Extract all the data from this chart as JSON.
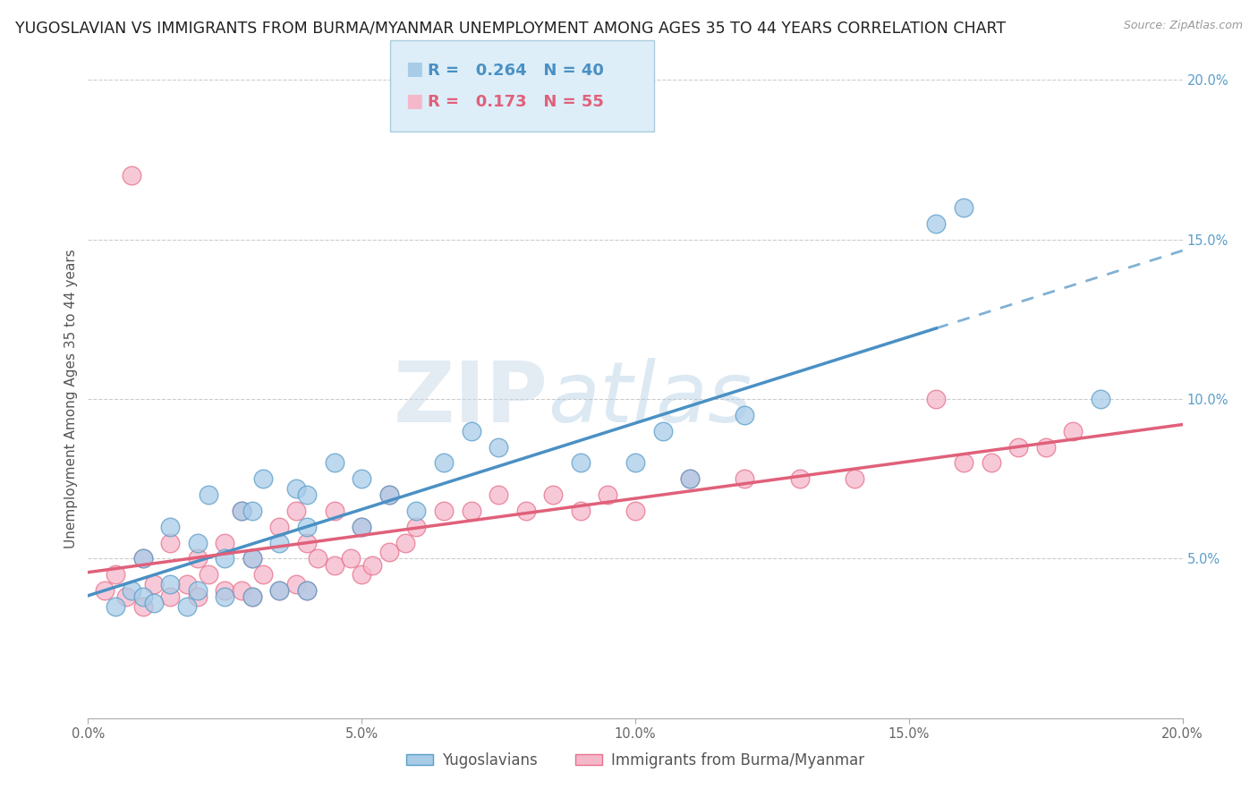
{
  "title": "YUGOSLAVIAN VS IMMIGRANTS FROM BURMA/MYANMAR UNEMPLOYMENT AMONG AGES 35 TO 44 YEARS CORRELATION CHART",
  "source": "Source: ZipAtlas.com",
  "ylabel": "Unemployment Among Ages 35 to 44 years",
  "blue_label": "Yugoslavians",
  "pink_label": "Immigrants from Burma/Myanmar",
  "blue_R": "0.264",
  "blue_N": "40",
  "pink_R": "0.173",
  "pink_N": "55",
  "xlim": [
    0.0,
    0.2
  ],
  "ylim": [
    0.0,
    0.2
  ],
  "blue_color": "#a8cce8",
  "pink_color": "#f5b8cb",
  "blue_edge_color": "#5b9ec9",
  "pink_edge_color": "#e8708a",
  "blue_line_color": "#4a90c4",
  "pink_line_color": "#e0607a",
  "watermark_zip": "ZIP",
  "watermark_atlas": "atlas",
  "grid_color": "#cccccc",
  "background_color": "#ffffff",
  "legend_box_color": "#ddeef8",
  "title_fontsize": 12.5,
  "axis_label_fontsize": 11,
  "tick_fontsize": 10.5,
  "legend_fontsize": 13,
  "blue_scatter_x": [
    0.005,
    0.008,
    0.01,
    0.01,
    0.012,
    0.015,
    0.015,
    0.018,
    0.02,
    0.02,
    0.022,
    0.025,
    0.025,
    0.028,
    0.03,
    0.03,
    0.03,
    0.032,
    0.035,
    0.035,
    0.038,
    0.04,
    0.04,
    0.04,
    0.045,
    0.05,
    0.05,
    0.055,
    0.06,
    0.065,
    0.07,
    0.075,
    0.09,
    0.1,
    0.105,
    0.11,
    0.12,
    0.155,
    0.16,
    0.185
  ],
  "blue_scatter_y": [
    0.035,
    0.04,
    0.038,
    0.05,
    0.036,
    0.042,
    0.06,
    0.035,
    0.04,
    0.055,
    0.07,
    0.038,
    0.05,
    0.065,
    0.038,
    0.05,
    0.065,
    0.075,
    0.04,
    0.055,
    0.072,
    0.04,
    0.06,
    0.07,
    0.08,
    0.06,
    0.075,
    0.07,
    0.065,
    0.08,
    0.09,
    0.085,
    0.08,
    0.08,
    0.09,
    0.075,
    0.095,
    0.155,
    0.16,
    0.1
  ],
  "pink_scatter_x": [
    0.003,
    0.005,
    0.007,
    0.008,
    0.01,
    0.01,
    0.012,
    0.015,
    0.015,
    0.018,
    0.02,
    0.02,
    0.022,
    0.025,
    0.025,
    0.028,
    0.028,
    0.03,
    0.03,
    0.032,
    0.035,
    0.035,
    0.038,
    0.038,
    0.04,
    0.04,
    0.042,
    0.045,
    0.045,
    0.048,
    0.05,
    0.05,
    0.052,
    0.055,
    0.055,
    0.058,
    0.06,
    0.065,
    0.07,
    0.075,
    0.08,
    0.085,
    0.09,
    0.095,
    0.1,
    0.11,
    0.12,
    0.13,
    0.14,
    0.155,
    0.16,
    0.165,
    0.17,
    0.175,
    0.18
  ],
  "pink_scatter_y": [
    0.04,
    0.045,
    0.038,
    0.17,
    0.035,
    0.05,
    0.042,
    0.038,
    0.055,
    0.042,
    0.038,
    0.05,
    0.045,
    0.04,
    0.055,
    0.04,
    0.065,
    0.038,
    0.05,
    0.045,
    0.04,
    0.06,
    0.042,
    0.065,
    0.04,
    0.055,
    0.05,
    0.048,
    0.065,
    0.05,
    0.045,
    0.06,
    0.048,
    0.052,
    0.07,
    0.055,
    0.06,
    0.065,
    0.065,
    0.07,
    0.065,
    0.07,
    0.065,
    0.07,
    0.065,
    0.075,
    0.075,
    0.075,
    0.075,
    0.1,
    0.08,
    0.08,
    0.085,
    0.085,
    0.09
  ],
  "blue_line_start_x": 0.0,
  "blue_line_end_x": 0.2,
  "pink_line_start_x": 0.0,
  "pink_line_end_x": 0.2
}
